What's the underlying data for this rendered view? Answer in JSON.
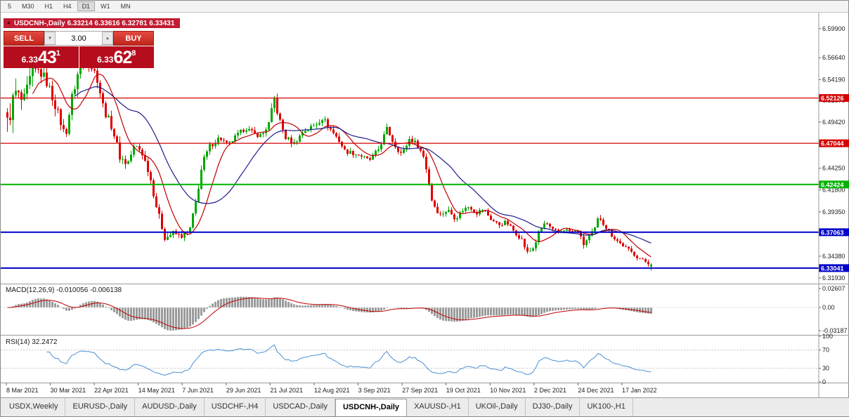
{
  "toolbar": {
    "periods": [
      "5",
      "M30",
      "H1",
      "H4",
      "D1",
      "W1",
      "MN"
    ],
    "active": "D1"
  },
  "chart_header": {
    "text": "USDCNH-,Daily 6.33214 6.33616 6.32781 6.33431",
    "symbol": "USDCNH-",
    "timeframe": "Daily",
    "open": "6.33214",
    "high": "6.33616",
    "low": "6.32781",
    "close": "6.33431"
  },
  "icons": {
    "collapse_triangle": "▲",
    "lot_down": "▼",
    "lot_up": "▲"
  },
  "trade_panel": {
    "sell_label": "SELL",
    "buy_label": "BUY",
    "lot_size": "3.00",
    "sell_price_small": "6.33",
    "sell_price_big": "43",
    "sell_price_sup": "1",
    "buy_price_small": "6.33",
    "buy_price_big": "62",
    "buy_price_sup": "8"
  },
  "price_scale": {
    "labels": [
      "6.59900",
      "6.56640",
      "6.54190",
      "6.51870",
      "6.49420",
      "6.44250",
      "6.41800",
      "6.39350",
      "6.34380",
      "6.31930"
    ]
  },
  "macd_panel": {
    "label": "MACD(12,26,9) -0.010056 -0.006138",
    "scale": [
      {
        "text": "0.02607",
        "value": 0.02607
      },
      {
        "text": "0.00",
        "value": 0
      },
      {
        "text": "-0.03187",
        "value": -0.03187
      }
    ]
  },
  "rsi_panel": {
    "label": "RSI(14) 32.2472",
    "levels": [
      100,
      70,
      30,
      0
    ],
    "dashed_levels": [
      70,
      30
    ]
  },
  "date_axis": [
    "8 Mar 2021",
    "30 Mar 2021",
    "22 Apr 2021",
    "14 May 2021",
    "7 Jun 2021",
    "29 Jun 2021",
    "21 Jul 2021",
    "12 Aug 2021",
    "3 Sep 2021",
    "27 Sep 2021",
    "19 Oct 2021",
    "10 Nov 2021",
    "2 Dec 2021",
    "24 Dec 2021",
    "17 Jan 2022"
  ],
  "tabs": [
    {
      "label": "USDX,Weekly",
      "active": false
    },
    {
      "label": "EURUSD-,Daily",
      "active": false
    },
    {
      "label": "AUDUSD-,Daily",
      "active": false
    },
    {
      "label": "USDCHF-,H4",
      "active": false
    },
    {
      "label": "USDCAD-,Daily",
      "active": false
    },
    {
      "label": "USDCNH-,Daily",
      "active": true
    },
    {
      "label": "XAUUSD-,H1",
      "active": false
    },
    {
      "label": "UKOil-,Daily",
      "active": false
    },
    {
      "label": "DJ30-,Daily",
      "active": false
    },
    {
      "label": "UK100-,H1",
      "active": false
    }
  ],
  "colors": {
    "candle_up": "#00a800",
    "candle_down": "#dd0000",
    "ma_fast": "#c00000",
    "ma_slow": "#1c1c8c",
    "macd_hist": "#9b9b9b",
    "macd_signal": "#c00000",
    "rsi_line": "#4a8fd4",
    "hline_red": "#d40000",
    "hline_green": "#00b200",
    "hline_blue": "#0000c8",
    "badge_text": "#ffffff"
  },
  "chart_data": {
    "type": "candlestick",
    "symbol": "USDCNH-",
    "timeframe": "Daily",
    "title": "USDCNH-,Daily",
    "candles": 230,
    "visible_range": {
      "min": 6.313,
      "max": 6.617
    },
    "ohlc_last": {
      "open": 6.33214,
      "high": 6.33616,
      "low": 6.32781,
      "close": 6.33431
    },
    "hlines": [
      {
        "price": 6.52126,
        "label": "6.52126",
        "color": "#d40000",
        "width": 1.3
      },
      {
        "price": 6.47044,
        "label": "6.47044",
        "color": "#d40000",
        "width": 1.3
      },
      {
        "price": 6.42424,
        "label": "6.42424",
        "color": "#00b200",
        "width": 2
      },
      {
        "price": 6.37063,
        "label": "6.37063",
        "color": "#0000c8",
        "width": 2
      },
      {
        "price": 6.33041,
        "label": "6.33041",
        "color": "#0000c8",
        "width": 2
      }
    ],
    "moving_averages": [
      {
        "name": "fast",
        "period": 10,
        "color": "#c00000"
      },
      {
        "name": "slow",
        "period": 25,
        "color": "#1c1c8c"
      }
    ],
    "indicators": {
      "macd": {
        "params": "12,26,9",
        "value": -0.010056,
        "signal": -0.006138
      },
      "rsi": {
        "period": 14,
        "value": 32.2472
      }
    },
    "anchors": [
      [
        0.0,
        6.492,
        0.025
      ],
      [
        0.012,
        6.528,
        0.022
      ],
      [
        0.025,
        6.515,
        0.018
      ],
      [
        0.038,
        6.548,
        0.02
      ],
      [
        0.05,
        6.552,
        0.016
      ],
      [
        0.062,
        6.538,
        0.013
      ],
      [
        0.075,
        6.512,
        0.012
      ],
      [
        0.09,
        6.478,
        0.011
      ],
      [
        0.1,
        6.52,
        0.014
      ],
      [
        0.112,
        6.556,
        0.013
      ],
      [
        0.125,
        6.562,
        0.01
      ],
      [
        0.138,
        6.548,
        0.009
      ],
      [
        0.15,
        6.508,
        0.01
      ],
      [
        0.163,
        6.488,
        0.009
      ],
      [
        0.175,
        6.455,
        0.011
      ],
      [
        0.186,
        6.447,
        0.008
      ],
      [
        0.198,
        6.468,
        0.008
      ],
      [
        0.208,
        6.462,
        0.007
      ],
      [
        0.22,
        6.438,
        0.008
      ],
      [
        0.233,
        6.395,
        0.009
      ],
      [
        0.245,
        6.364,
        0.008
      ],
      [
        0.258,
        6.37,
        0.006
      ],
      [
        0.27,
        6.366,
        0.006
      ],
      [
        0.283,
        6.372,
        0.006
      ],
      [
        0.293,
        6.405,
        0.008
      ],
      [
        0.303,
        6.448,
        0.008
      ],
      [
        0.315,
        6.468,
        0.007
      ],
      [
        0.33,
        6.477,
        0.007
      ],
      [
        0.342,
        6.468,
        0.006
      ],
      [
        0.355,
        6.478,
        0.006
      ],
      [
        0.37,
        6.488,
        0.006
      ],
      [
        0.383,
        6.481,
        0.006
      ],
      [
        0.395,
        6.479,
        0.006
      ],
      [
        0.408,
        6.495,
        0.007
      ],
      [
        0.414,
        6.522,
        0.011
      ],
      [
        0.422,
        6.498,
        0.008
      ],
      [
        0.432,
        6.477,
        0.007
      ],
      [
        0.445,
        6.47,
        0.006
      ],
      [
        0.46,
        6.484,
        0.006
      ],
      [
        0.478,
        6.491,
        0.006
      ],
      [
        0.49,
        6.499,
        0.006
      ],
      [
        0.502,
        6.486,
        0.006
      ],
      [
        0.514,
        6.475,
        0.006
      ],
      [
        0.524,
        6.462,
        0.006
      ],
      [
        0.538,
        6.459,
        0.005
      ],
      [
        0.548,
        6.457,
        0.005
      ],
      [
        0.562,
        6.451,
        0.005
      ],
      [
        0.576,
        6.463,
        0.006
      ],
      [
        0.59,
        6.487,
        0.007
      ],
      [
        0.601,
        6.469,
        0.006
      ],
      [
        0.613,
        6.458,
        0.006
      ],
      [
        0.625,
        6.476,
        0.006
      ],
      [
        0.637,
        6.469,
        0.006
      ],
      [
        0.648,
        6.453,
        0.006
      ],
      [
        0.66,
        6.405,
        0.009
      ],
      [
        0.672,
        6.39,
        0.006
      ],
      [
        0.684,
        6.396,
        0.006
      ],
      [
        0.696,
        6.386,
        0.005
      ],
      [
        0.708,
        6.396,
        0.005
      ],
      [
        0.718,
        6.4,
        0.005
      ],
      [
        0.728,
        6.392,
        0.005
      ],
      [
        0.74,
        6.397,
        0.005
      ],
      [
        0.75,
        6.386,
        0.005
      ],
      [
        0.763,
        6.379,
        0.005
      ],
      [
        0.775,
        6.382,
        0.005
      ],
      [
        0.788,
        6.371,
        0.005
      ],
      [
        0.798,
        6.364,
        0.006
      ],
      [
        0.808,
        6.347,
        0.007
      ],
      [
        0.818,
        6.354,
        0.006
      ],
      [
        0.827,
        6.373,
        0.006
      ],
      [
        0.836,
        6.382,
        0.005
      ],
      [
        0.846,
        6.373,
        0.004
      ],
      [
        0.856,
        6.371,
        0.004
      ],
      [
        0.866,
        6.374,
        0.004
      ],
      [
        0.876,
        6.371,
        0.004
      ],
      [
        0.886,
        6.372,
        0.004
      ],
      [
        0.895,
        6.357,
        0.006
      ],
      [
        0.904,
        6.366,
        0.005
      ],
      [
        0.912,
        6.373,
        0.005
      ],
      [
        0.919,
        6.389,
        0.006
      ],
      [
        0.928,
        6.378,
        0.005
      ],
      [
        0.94,
        6.366,
        0.004
      ],
      [
        0.952,
        6.358,
        0.004
      ],
      [
        0.965,
        6.351,
        0.004
      ],
      [
        0.98,
        6.342,
        0.004
      ],
      [
        1.0,
        6.3343,
        0.004
      ]
    ]
  }
}
